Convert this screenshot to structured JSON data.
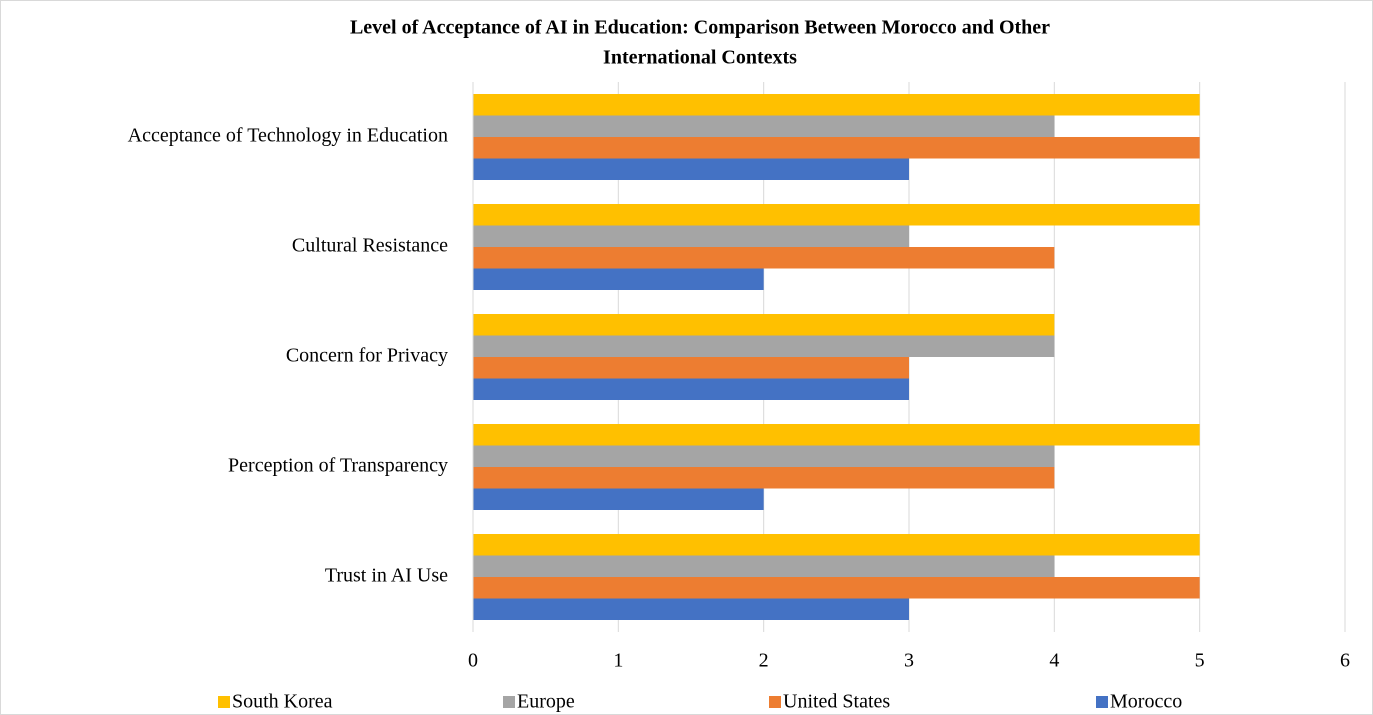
{
  "chart_data": {
    "type": "hbar",
    "title": "Level of Acceptance of AI in Education: Comparison Between Morocco and Other",
    "subtitle": "International Contexts",
    "categories": [
      "Acceptance of Technology in Education",
      "Cultural Resistance",
      "Concern for Privacy",
      "Perception of Transparency",
      "Trust in AI Use"
    ],
    "series": [
      {
        "name": "South Korea",
        "color": "#FFC000",
        "values": [
          5,
          5,
          4,
          5,
          5
        ]
      },
      {
        "name": "Europe",
        "color": "#A5A5A5",
        "values": [
          4,
          3,
          4,
          4,
          4
        ]
      },
      {
        "name": "United States",
        "color": "#ED7D31",
        "values": [
          5,
          4,
          3,
          4,
          5
        ]
      },
      {
        "name": "Morocco",
        "color": "#4472C4",
        "values": [
          3,
          2,
          3,
          2,
          3
        ]
      }
    ],
    "xlim": [
      0,
      6
    ],
    "xticks": [
      0,
      1,
      2,
      3,
      4,
      5,
      6
    ],
    "grid": true,
    "legend": "bottom"
  }
}
